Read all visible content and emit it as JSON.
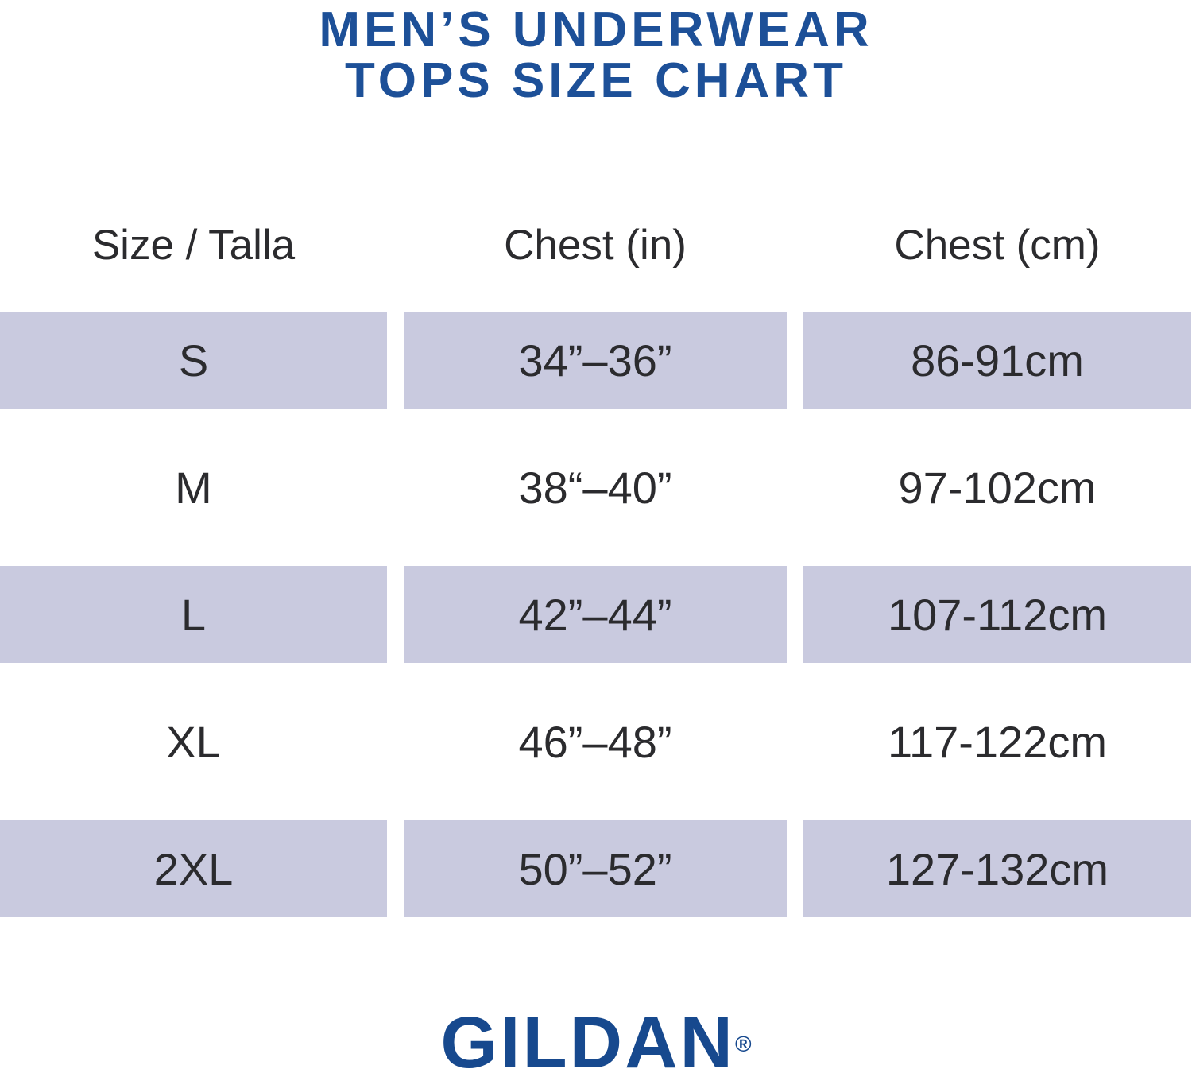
{
  "title": {
    "line1": "MEN’S UNDERWEAR",
    "line2": "TOPS SIZE CHART"
  },
  "table": {
    "headers": {
      "size": "Size / Talla",
      "chest_in": "Chest (in)",
      "chest_cm": "Chest (cm)"
    },
    "rows": [
      {
        "size": "S",
        "chest_in": "34”–36”",
        "chest_cm": "86-91cm",
        "highlighted": true
      },
      {
        "size": "M",
        "chest_in": "38“–40”",
        "chest_cm": "97-102cm",
        "highlighted": false
      },
      {
        "size": "L",
        "chest_in": "42”–44”",
        "chest_cm": "107-112cm",
        "highlighted": true
      },
      {
        "size": "XL",
        "chest_in": "46”–48”",
        "chest_cm": "117-122cm",
        "highlighted": false
      },
      {
        "size": "2XL",
        "chest_in": "50”–52”",
        "chest_cm": "127-132cm",
        "highlighted": true
      }
    ]
  },
  "brand": {
    "name": "GILDAN",
    "registered_mark": "®"
  },
  "colors": {
    "title_blue": "#1D5098",
    "logo_blue": "#17498E",
    "row_highlight": "#C9CADF",
    "text_dark": "#2B2B2E"
  },
  "chart_data": {
    "type": "table",
    "title": "MEN’S UNDERWEAR TOPS SIZE CHART",
    "columns": [
      "Size / Talla",
      "Chest (in)",
      "Chest (cm)"
    ],
    "rows": [
      [
        "S",
        "34”–36”",
        "86-91cm"
      ],
      [
        "M",
        "38“–40”",
        "97-102cm"
      ],
      [
        "L",
        "42”–44”",
        "107-112cm"
      ],
      [
        "XL",
        "46”–48”",
        "117-122cm"
      ],
      [
        "2XL",
        "50”–52”",
        "127-132cm"
      ]
    ],
    "chest_in_numeric_ranges": [
      [
        34,
        36
      ],
      [
        38,
        40
      ],
      [
        42,
        44
      ],
      [
        46,
        48
      ],
      [
        50,
        52
      ]
    ],
    "chest_cm_numeric_ranges": [
      [
        86,
        91
      ],
      [
        97,
        102
      ],
      [
        107,
        112
      ],
      [
        117,
        122
      ],
      [
        127,
        132
      ]
    ],
    "highlighted_rows": [
      "S",
      "L",
      "2XL"
    ],
    "layout_hints": {
      "zebra_striping": true,
      "grid": false,
      "legend": "none"
    }
  }
}
